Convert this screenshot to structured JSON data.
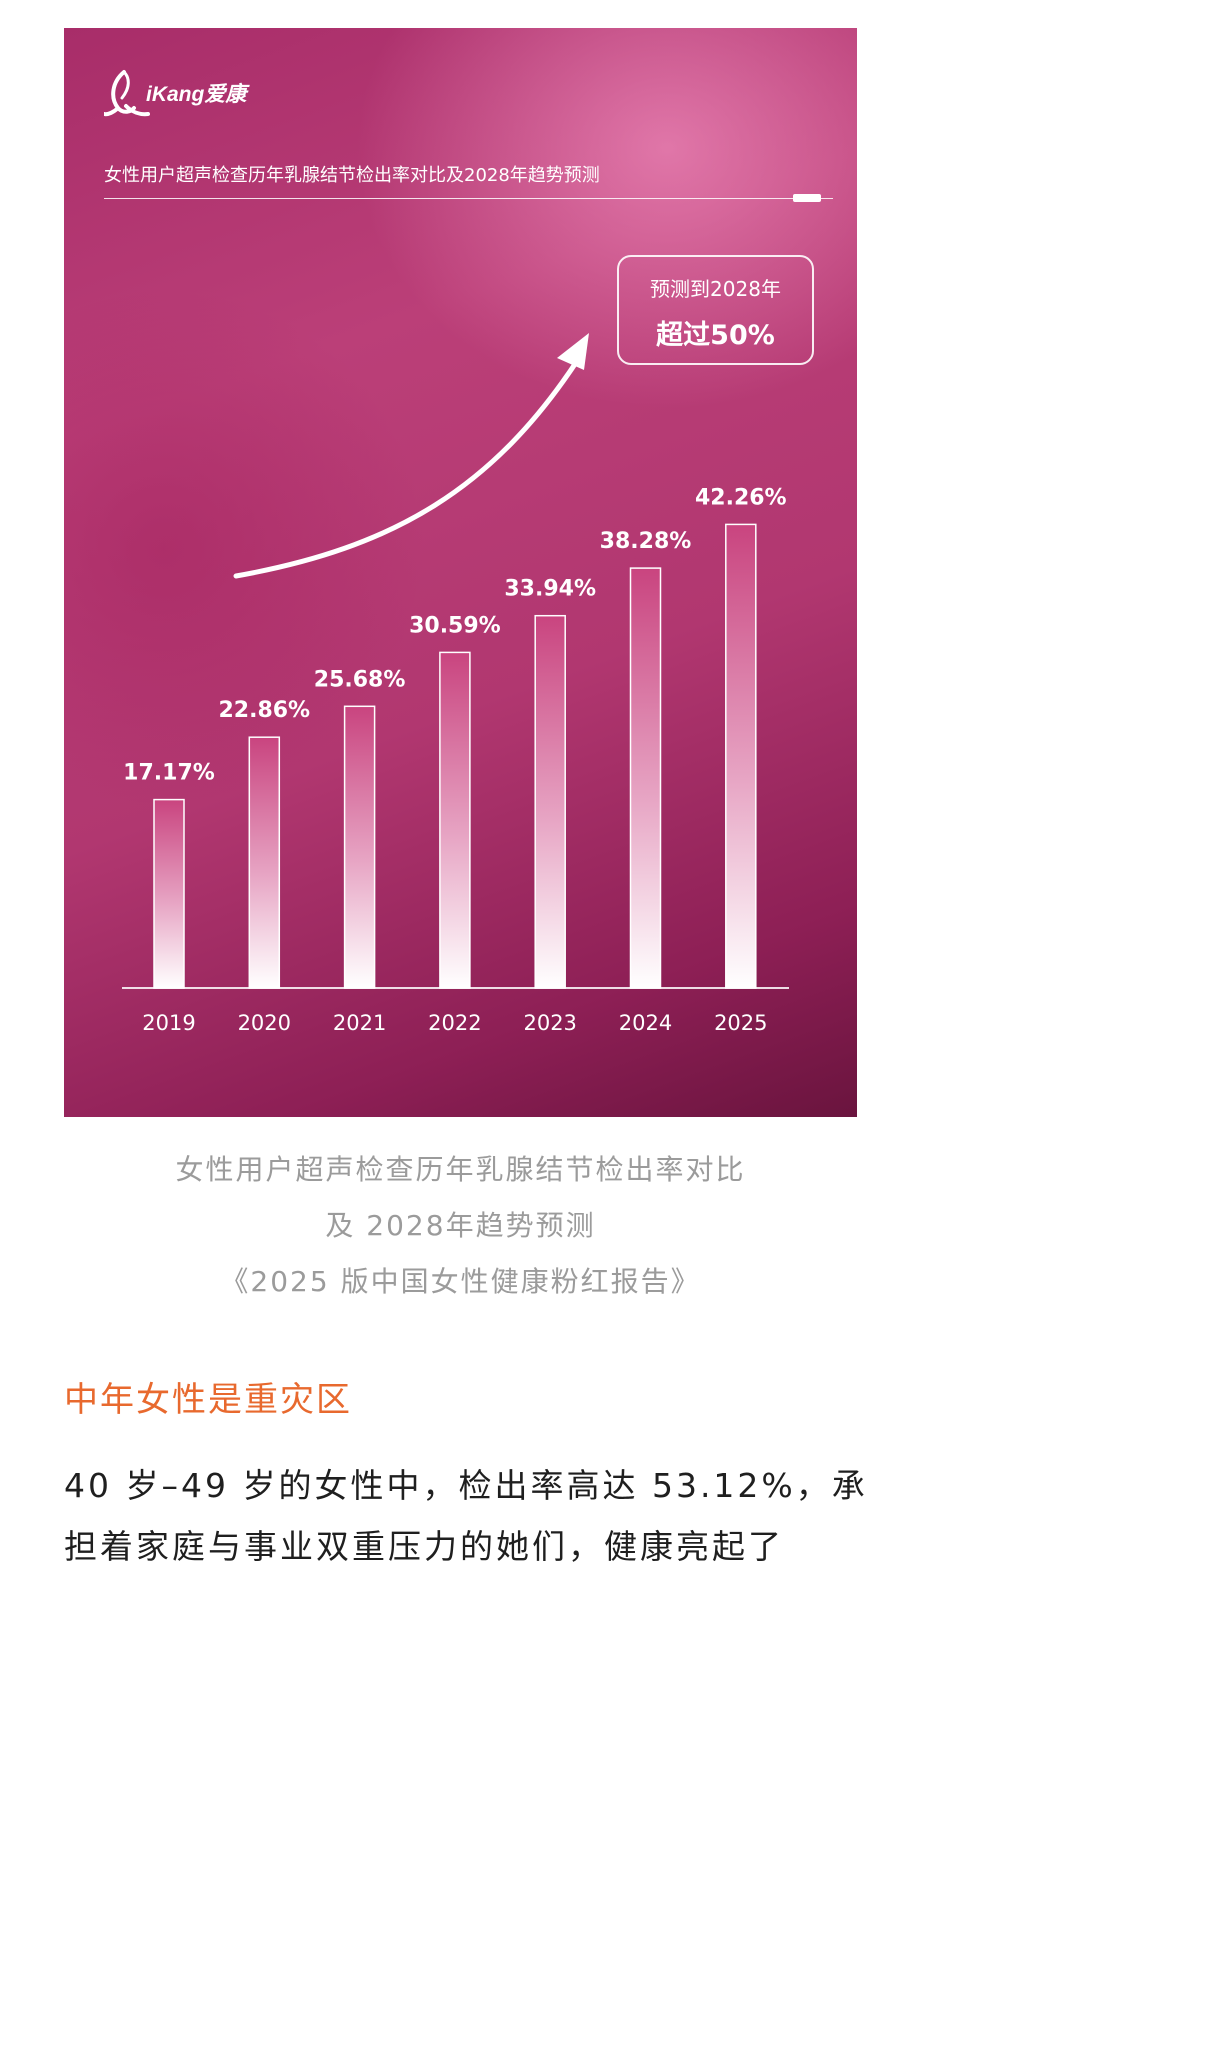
{
  "header": {
    "logo_text": "iKang爱康",
    "title": "女性用户超声检查历年乳腺结节检出率对比及2028年趋势预测"
  },
  "prediction": {
    "line1": "预测到2028年",
    "line2": "超过50%"
  },
  "chart_data": {
    "type": "bar",
    "title": "女性用户超声检查历年乳腺结节检出率对比及2028年趋势预测",
    "categories": [
      "2019",
      "2020",
      "2021",
      "2022",
      "2023",
      "2024",
      "2025"
    ],
    "values": [
      17.17,
      22.86,
      25.68,
      30.59,
      33.94,
      38.28,
      42.26
    ],
    "labels": [
      "17.17%",
      "22.86%",
      "25.68%",
      "30.59%",
      "33.94%",
      "38.28%",
      "42.26%"
    ],
    "unit": "%",
    "ylim": [
      0,
      50
    ],
    "grid": false,
    "xlabel": "",
    "ylabel": "",
    "colors": {
      "background": "#a82d69",
      "bar_top": "#c9447f",
      "bar_bottom": "#ffffff",
      "text": "#ffffff"
    }
  },
  "caption": {
    "line1": "女性用户超声检查历年乳腺结节检出率对比",
    "line2": "及 2028年趋势预测",
    "line3": "《2025 版中国女性健康粉红报告》"
  },
  "article": {
    "heading": "中年女性是重灾区",
    "heading_color": "#e8692e",
    "paragraph_lines": [
      "40 岁–49 岁的女性中，检出率高达 53.12%，承",
      "担着家庭与事业双重压力的她们，健康亮起了"
    ]
  }
}
